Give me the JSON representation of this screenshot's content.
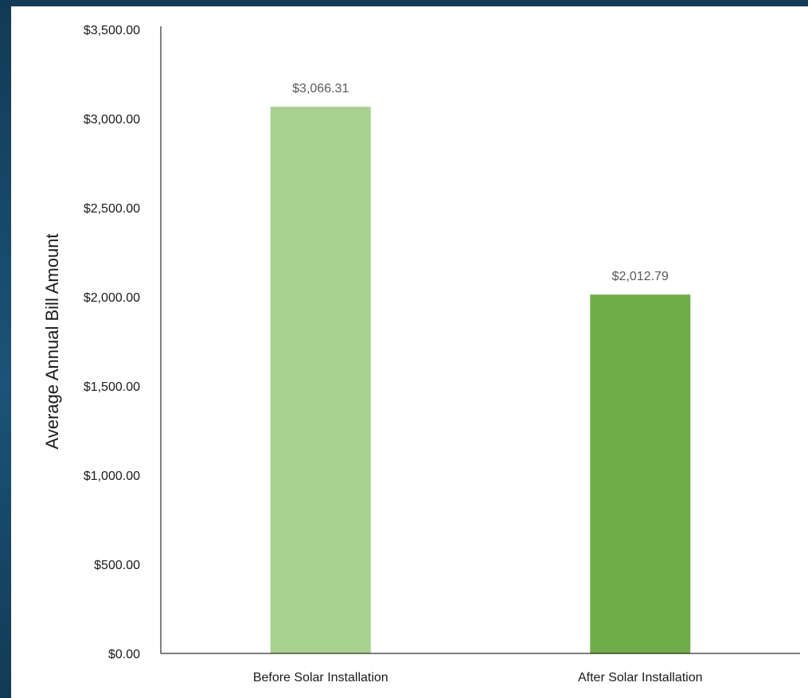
{
  "chart_data": {
    "type": "bar",
    "title": "",
    "xlabel": "",
    "ylabel": "Average Annual Bill Amount",
    "categories": [
      "Before Solar Installation",
      "After Solar Installation"
    ],
    "values": [
      3066.31,
      2012.79
    ],
    "value_labels": [
      "$3,066.31",
      "$2,012.79"
    ],
    "bar_colors": [
      "#a9d18e",
      "#70ad47"
    ],
    "ylim": [
      0,
      3500
    ],
    "yticks": [
      0,
      500,
      1000,
      1500,
      2000,
      2500,
      3000,
      3500
    ],
    "ytick_labels": [
      "$0.00",
      "$500.00",
      "$1,000.00",
      "$1,500.00",
      "$2,000.00",
      "$2,500.00",
      "$3,000.00",
      "$3,500.00"
    ],
    "grid": false,
    "legend": "none"
  }
}
